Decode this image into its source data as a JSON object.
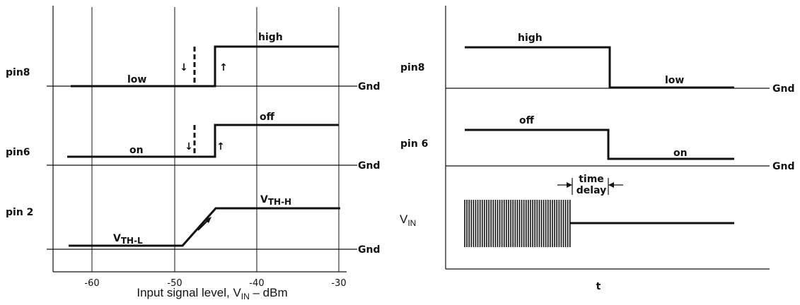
{
  "left_diagram": {
    "x_ticks": [
      "-60",
      "-50",
      "-40",
      "-30"
    ],
    "xlabel_prefix": "Input signal level, V",
    "xlabel_sub": "IN",
    "xlabel_suffix": " – dBm",
    "panels": [
      {
        "name": "pin8",
        "ground": "Gnd",
        "labels": [
          "low",
          "high"
        ],
        "arrow_down": "↓",
        "arrow_up": "↑"
      },
      {
        "name": "pin6",
        "ground": "Gnd",
        "labels": [
          "on",
          "off"
        ],
        "arrow_down": "↓",
        "arrow_up": "↑"
      },
      {
        "name": "pin2",
        "ground": "Gnd",
        "v_low_main": "V",
        "v_low_sub": "TH-L",
        "v_high_main": "V",
        "v_high_sub": "TH-H"
      }
    ]
  },
  "right_diagram": {
    "x_label": "t",
    "time_delay_line1": "time",
    "time_delay_line2": "delay",
    "panels": [
      {
        "name": "pin8",
        "ground": "Gnd",
        "labels": [
          "high",
          "low"
        ]
      },
      {
        "name": "pin 6",
        "ground": "Gnd",
        "labels": [
          "off",
          "on"
        ]
      },
      {
        "name_main": "V",
        "name_sub": "IN"
      }
    ]
  }
}
